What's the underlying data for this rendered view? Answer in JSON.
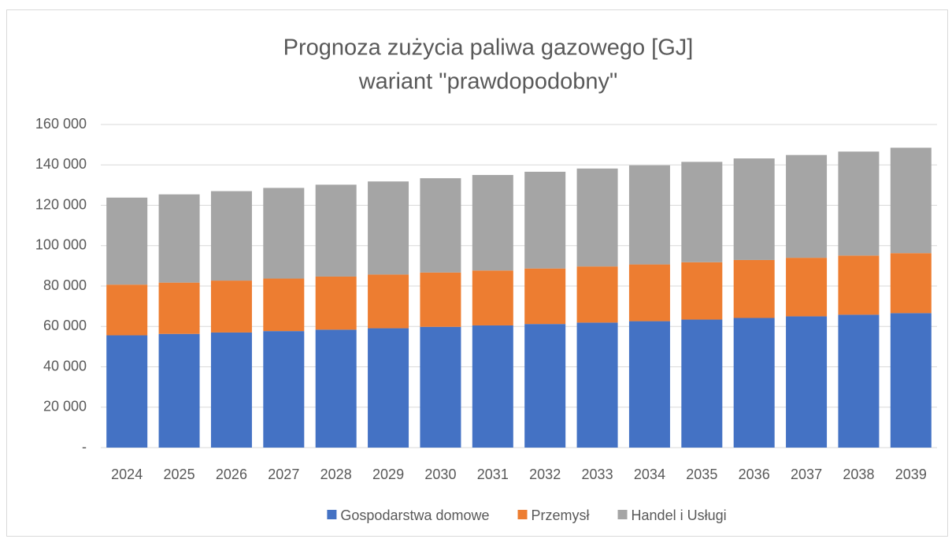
{
  "chart_data": {
    "type": "stacked_bar",
    "title": "Prognoza zużycia paliwa gazowego [GJ]",
    "subtitle": "wariant \"prawdopodobny\"",
    "categories": [
      "2024",
      "2025",
      "2026",
      "2027",
      "2028",
      "2029",
      "2030",
      "2031",
      "2032",
      "2033",
      "2034",
      "2035",
      "2036",
      "2037",
      "2038",
      "2039"
    ],
    "series": [
      {
        "name": "Gospodarstwa domowe",
        "color": "#4472c4",
        "values": [
          55600,
          56300,
          57000,
          57700,
          58400,
          59100,
          59800,
          60500,
          61200,
          61900,
          62600,
          63400,
          64200,
          65000,
          65800,
          66600
        ]
      },
      {
        "name": "Przemysł",
        "color": "#ed7d31",
        "values": [
          25100,
          25400,
          25700,
          26000,
          26300,
          26600,
          26900,
          27200,
          27500,
          27800,
          28100,
          28400,
          28700,
          29000,
          29300,
          29700
        ]
      },
      {
        "name": "Handel i Usługi",
        "color": "#a5a5a5",
        "values": [
          43100,
          43700,
          44300,
          44900,
          45500,
          46100,
          46700,
          47300,
          47900,
          48500,
          49100,
          49700,
          50300,
          50900,
          51500,
          52200
        ]
      }
    ],
    "ylim": [
      0,
      160000
    ],
    "yticks": [
      {
        "value": 0,
        "label": "-"
      },
      {
        "value": 20000,
        "label": "20 000"
      },
      {
        "value": 40000,
        "label": "40 000"
      },
      {
        "value": 60000,
        "label": "60 000"
      },
      {
        "value": 80000,
        "label": "80 000"
      },
      {
        "value": 100000,
        "label": "100 000"
      },
      {
        "value": 120000,
        "label": "120 000"
      },
      {
        "value": 140000,
        "label": "140 000"
      },
      {
        "value": 160000,
        "label": "160 000"
      }
    ],
    "grid": true,
    "legend": "bottom"
  }
}
